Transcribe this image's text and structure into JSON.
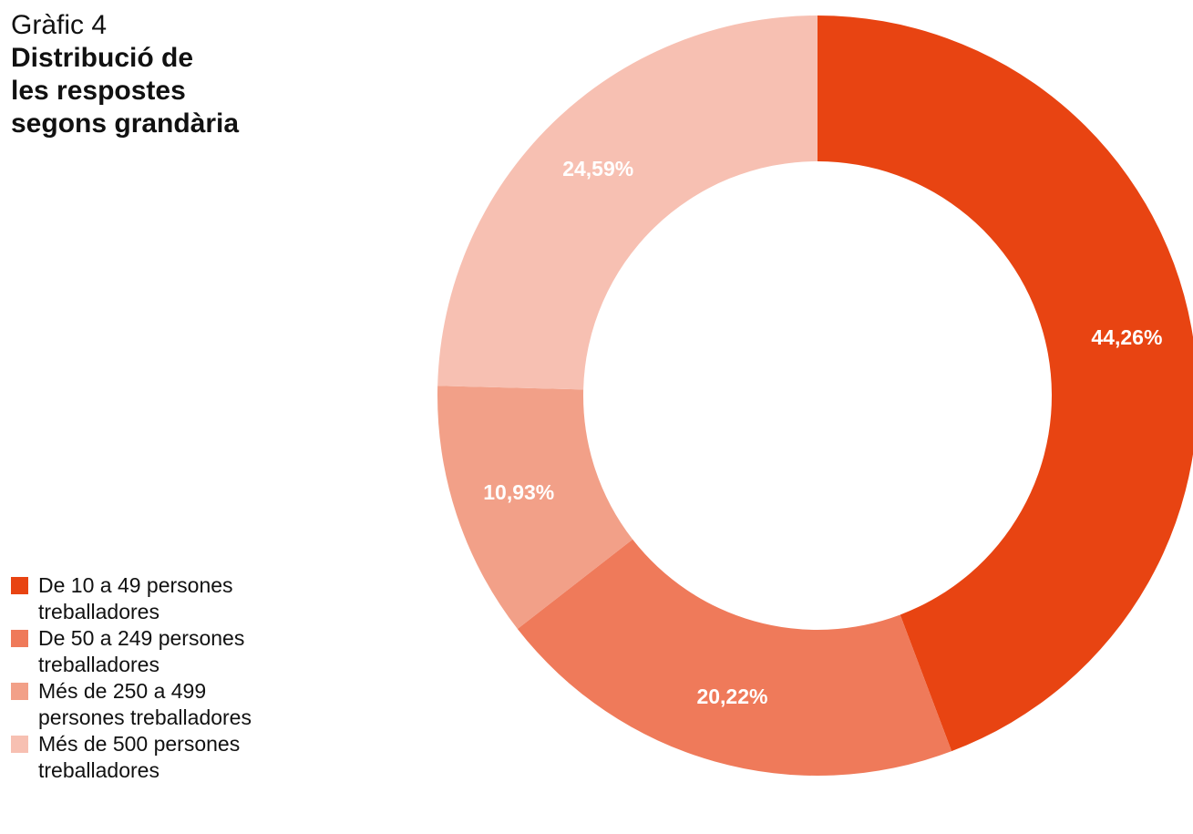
{
  "chart_data": {
    "type": "donut",
    "title": "Gràfic 4",
    "subtitle": "Distribució de\nles respostes\nsegons grandària",
    "categories": [
      "De 10 a 49 persones treballadores",
      "De 50 a 249 persones treballadores",
      "Més de 250 a 499 persones treballadores",
      "Més de 500 persones treballadores"
    ],
    "values": [
      44.26,
      20.22,
      10.93,
      24.59
    ],
    "value_labels": [
      "44,26%",
      "20,22%",
      "10,93%",
      "24,59%"
    ],
    "colors": [
      "#e84412",
      "#ef7a5a",
      "#f2a088",
      "#f7c0b2"
    ],
    "legend": "bottom-left"
  }
}
